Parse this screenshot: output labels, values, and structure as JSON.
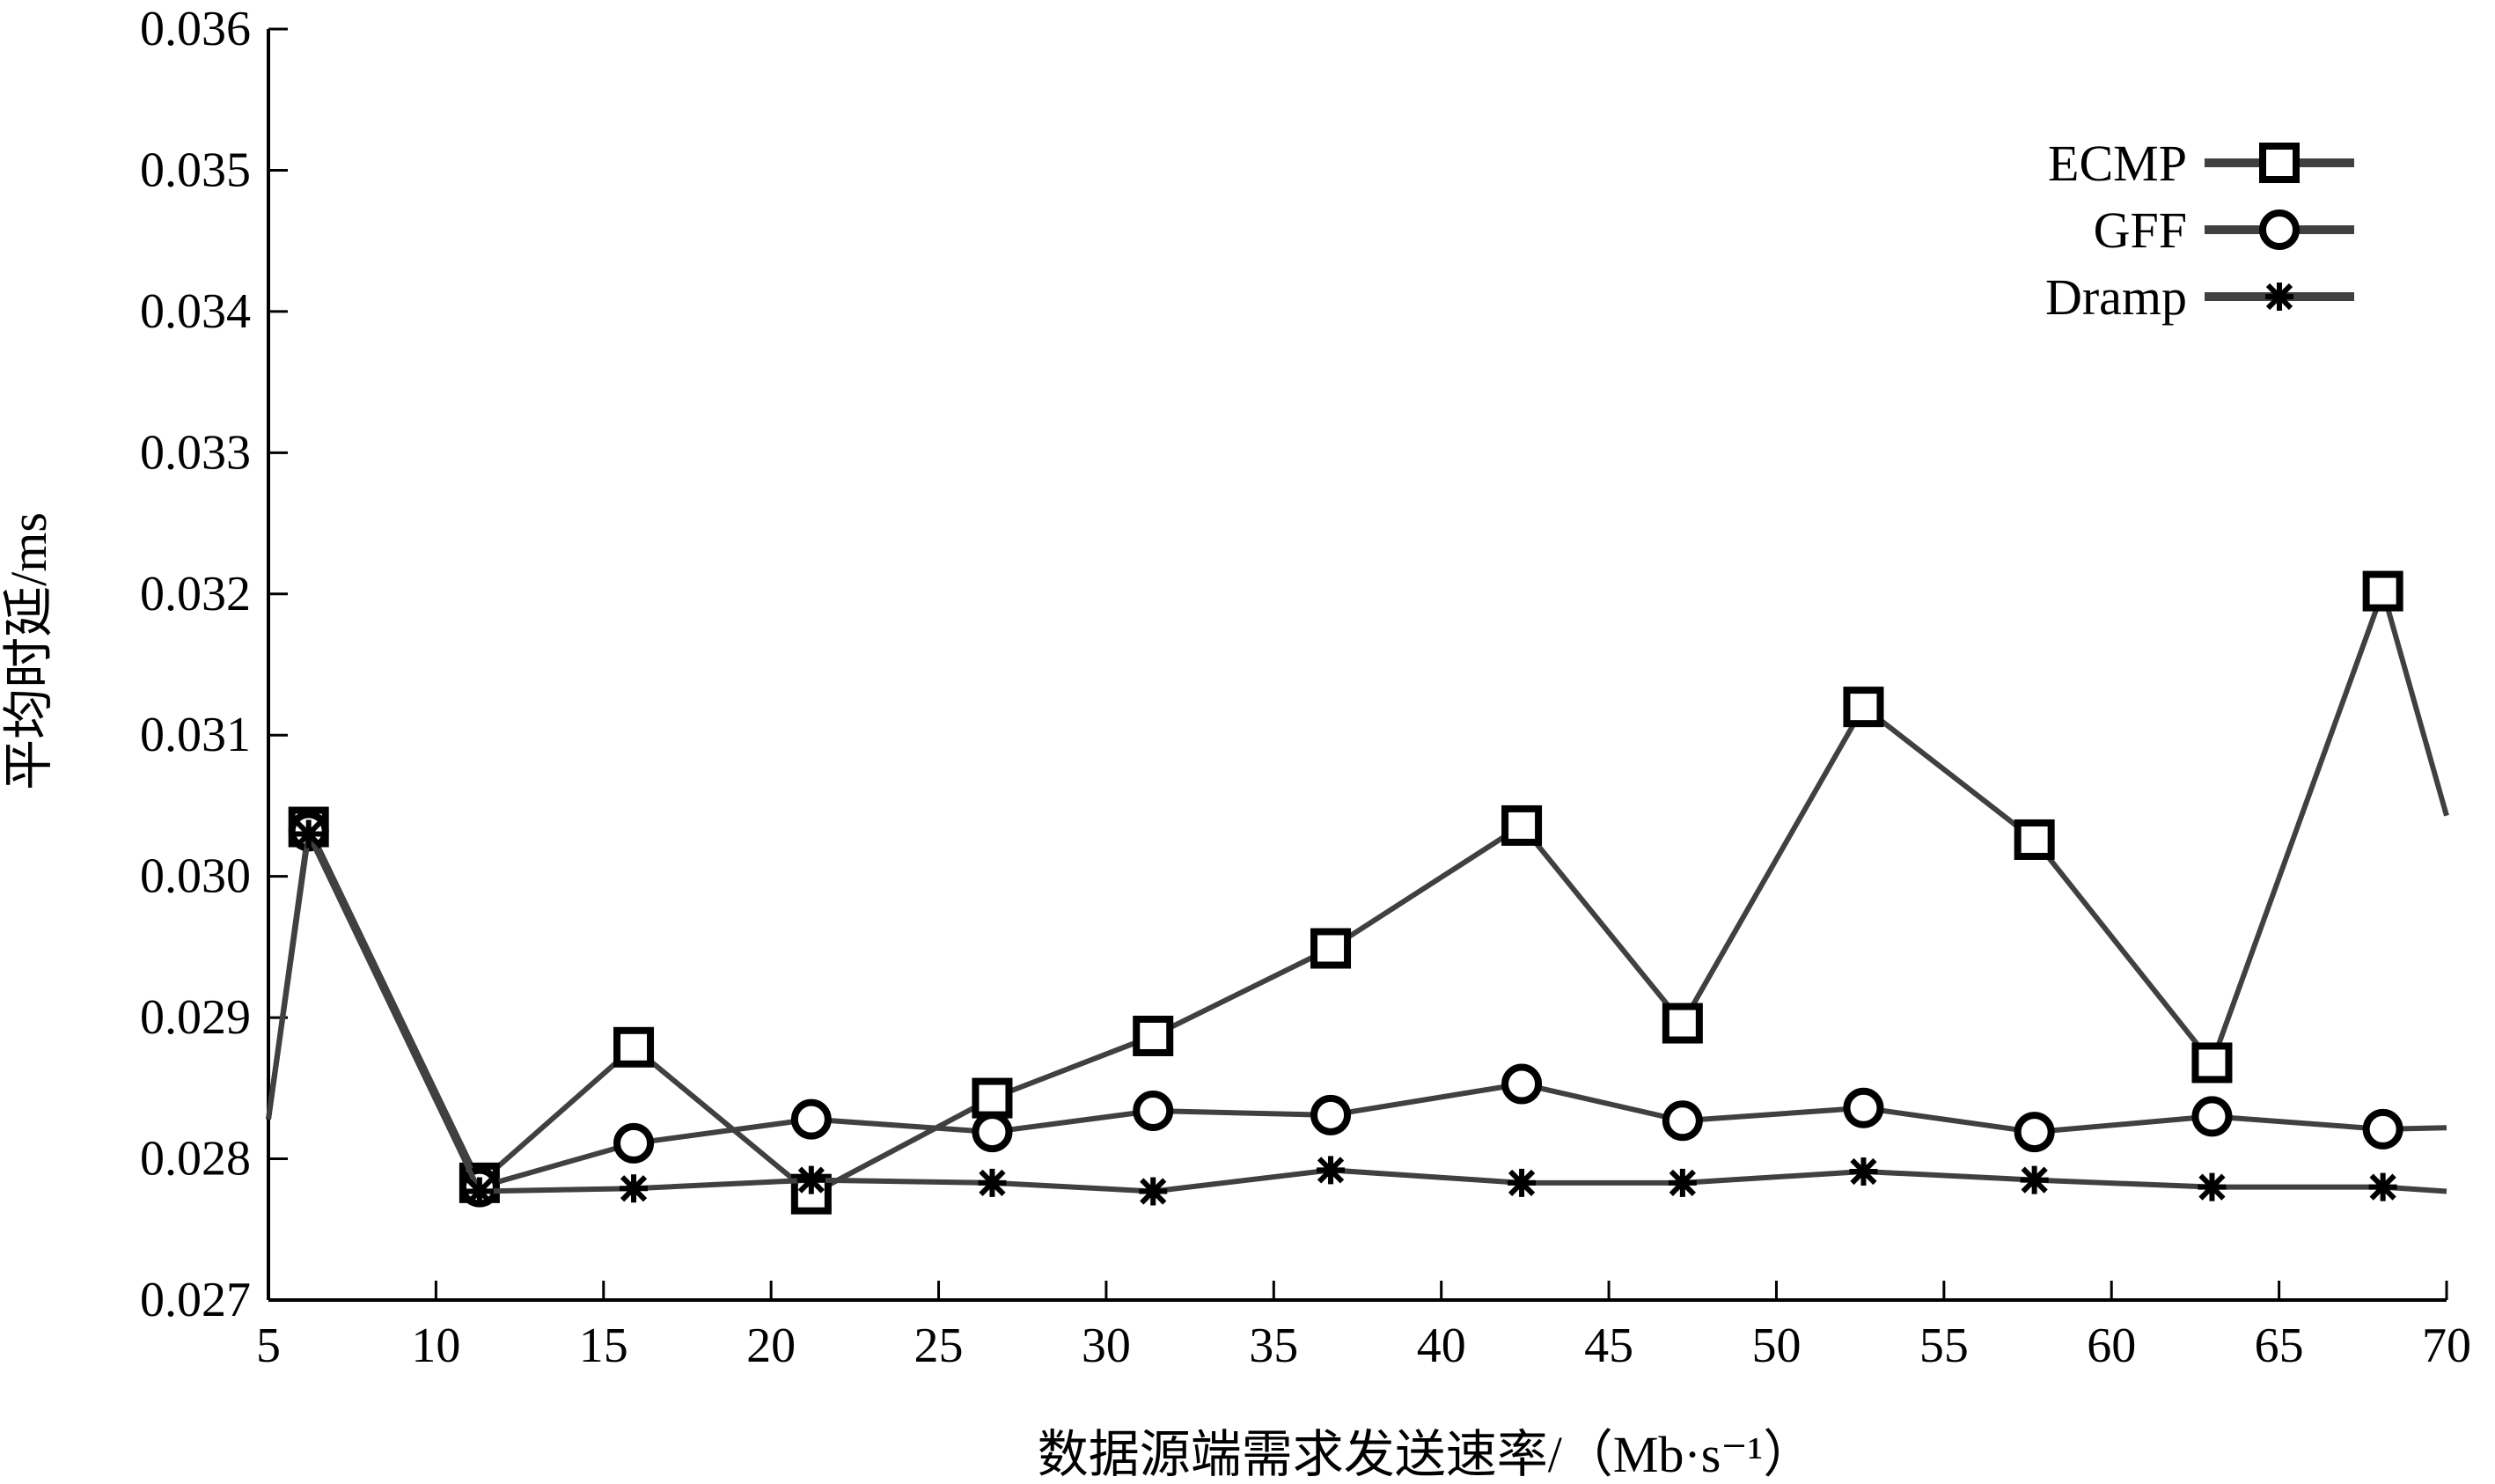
{
  "chart_data": {
    "type": "line",
    "title": "",
    "xlabel": "数据源端需求发送速率/（Mb·s⁻¹）",
    "ylabel": "平均时延/ms",
    "xlim": [
      5,
      70
    ],
    "ylim": [
      0.027,
      0.036
    ],
    "xticks": [
      "5",
      "10",
      "15",
      "20",
      "25",
      "30",
      "35",
      "40",
      "45",
      "50",
      "55",
      "60",
      "65",
      "70"
    ],
    "yticks": [
      "0.027",
      "0.028",
      "0.029",
      "0.030",
      "0.031",
      "0.032",
      "0.033",
      "0.034",
      "0.035",
      "0.036"
    ],
    "grid": false,
    "legend_position": "top-right",
    "line_color": "#404040",
    "series": [
      {
        "name": "ECMP",
        "marker": "square",
        "x": [
          5,
          6.2,
          11.3,
          15.9,
          21.2,
          26.6,
          31.4,
          36.7,
          42.4,
          47.2,
          52.6,
          57.7,
          63.0,
          68.1,
          70
        ],
        "y": [
          0.02828,
          0.03035,
          0.02783,
          0.02879,
          0.02775,
          0.02843,
          0.02887,
          0.02949,
          0.03036,
          0.02896,
          0.0312,
          0.03026,
          0.02868,
          0.03202,
          0.03043
        ]
      },
      {
        "name": "GFF",
        "marker": "circle",
        "x": [
          5,
          6.2,
          11.3,
          15.9,
          21.2,
          26.6,
          31.4,
          36.7,
          42.4,
          47.2,
          52.6,
          57.7,
          63.0,
          68.1,
          70
        ],
        "y": [
          0.02828,
          0.03032,
          0.0278,
          0.02811,
          0.02828,
          0.02819,
          0.02834,
          0.02831,
          0.02853,
          0.02827,
          0.02836,
          0.02819,
          0.0283,
          0.02821,
          0.02822
        ]
      },
      {
        "name": "Dramp",
        "marker": "asterisk",
        "x": [
          5,
          6.2,
          11.3,
          15.9,
          21.2,
          26.6,
          31.4,
          36.7,
          42.4,
          47.2,
          52.6,
          57.7,
          63.0,
          68.1,
          70
        ],
        "y": [
          0.02828,
          0.0303,
          0.02777,
          0.02779,
          0.02785,
          0.02783,
          0.02777,
          0.02792,
          0.02783,
          0.02783,
          0.02791,
          0.02785,
          0.0278,
          0.0278,
          0.02777
        ]
      }
    ]
  }
}
